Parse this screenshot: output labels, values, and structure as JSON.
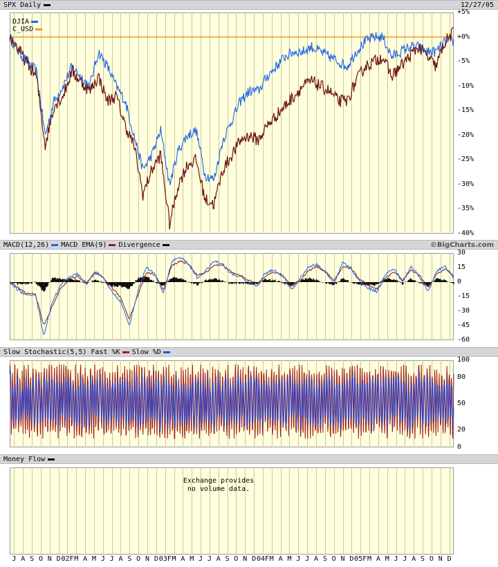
{
  "header": {
    "symbol_label": "SPX Daily",
    "date_label": "12/27/05"
  },
  "macd_header": {
    "macd_label": "MACD(12,26)",
    "ema_label": "MACD EMA(9)",
    "div_label": "Divergence",
    "credit": "©BigCharts.com"
  },
  "stoch_header": {
    "label": "Slow Stochastic(5,5)",
    "fast_label": "Fast %K",
    "slow_label": "Slow %D"
  },
  "money_header": {
    "label": "Money Flow"
  },
  "money_flow": {
    "message_line1": "Exchange provides",
    "message_line2": "no volume data."
  },
  "colors": {
    "spx": "#6b0f0f",
    "djia": "#1e64e6",
    "cusd": "#e89a2a",
    "macd": "#1e64e6",
    "ema": "#8b1a1a",
    "divergence": "#000000",
    "fastk": "#a01a1a",
    "slowd": "#2850e0",
    "grid": "#c8c8a0"
  },
  "chart_data": [
    {
      "type": "line",
      "title": "SPX Daily",
      "ylabel": "",
      "y_unit": "%",
      "ylim": [
        -40,
        5
      ],
      "y_ticks": [
        "+5%",
        "+0%",
        "-5%",
        "-10%",
        "-15%",
        "-20%",
        "-25%",
        "-30%",
        "-35%",
        "-40%"
      ],
      "y_tick_values": [
        5,
        0,
        -5,
        -10,
        -15,
        -20,
        -25,
        -30,
        -35,
        -40
      ],
      "x_ticks": [
        "J",
        "A",
        "S",
        "O",
        "N",
        "D",
        "02F",
        "M",
        "A",
        "M",
        "J",
        "J",
        "A",
        "S",
        "O",
        "N",
        "D",
        "03F",
        "M",
        "A",
        "M",
        "J",
        "J",
        "A",
        "S",
        "O",
        "N",
        "D",
        "04F",
        "M",
        "A",
        "M",
        "J",
        "J",
        "A",
        "S",
        "O",
        "N",
        "D",
        "05F",
        "M",
        "A",
        "M",
        "J",
        "J",
        "A",
        "S",
        "O",
        "N",
        "D"
      ],
      "grid": true,
      "legend": "top-left",
      "series": [
        {
          "name": "SPX",
          "x": [
            0,
            2,
            4,
            6,
            8,
            10,
            12,
            14,
            16,
            18,
            20,
            22,
            24,
            26,
            28,
            30,
            32,
            34,
            36,
            38,
            40,
            42,
            44,
            46,
            48,
            50,
            52,
            54,
            56,
            58,
            60,
            62,
            64,
            66,
            68,
            70,
            72,
            74,
            76,
            78,
            80,
            82,
            84,
            86,
            88,
            90,
            92,
            94,
            96,
            98,
            100
          ],
          "values": [
            0,
            -2.5,
            -5.5,
            -8,
            -22,
            -14,
            -12,
            -7,
            -9,
            -11,
            -8,
            -13,
            -12,
            -18,
            -22,
            -32,
            -27,
            -24,
            -38,
            -30,
            -26,
            -25,
            -33,
            -34,
            -27,
            -24,
            -21,
            -20,
            -21,
            -18,
            -16,
            -14,
            -12,
            -10,
            -9,
            -10,
            -11,
            -13,
            -13,
            -9,
            -6,
            -5,
            -4,
            -8,
            -6,
            -4,
            -2,
            -4,
            -6,
            -1,
            1
          ]
        },
        {
          "name": "DJIA",
          "x": [
            0,
            2,
            4,
            6,
            8,
            10,
            12,
            14,
            16,
            18,
            20,
            22,
            24,
            26,
            28,
            30,
            32,
            34,
            36,
            38,
            40,
            42,
            44,
            46,
            48,
            50,
            52,
            54,
            56,
            58,
            60,
            62,
            64,
            66,
            68,
            70,
            72,
            74,
            76,
            78,
            80,
            82,
            84,
            86,
            88,
            90,
            92,
            94,
            96,
            98,
            100
          ],
          "values": [
            0,
            -3,
            -5,
            -7,
            -20,
            -13,
            -10,
            -6,
            -8,
            -10,
            -3,
            -6,
            -10,
            -13,
            -20,
            -27,
            -24,
            -19,
            -30,
            -23,
            -20,
            -19,
            -28,
            -29,
            -21,
            -17,
            -13,
            -11,
            -11,
            -8,
            -6,
            -4,
            -3,
            -3,
            -2,
            -3,
            -4,
            -5,
            -6,
            -3,
            -1,
            0,
            0,
            -4,
            -3,
            -2,
            -2,
            -3,
            -3,
            -1,
            -1
          ]
        },
        {
          "name": "C_USD",
          "x": [
            0,
            100
          ],
          "values": [
            0,
            0
          ]
        }
      ]
    },
    {
      "type": "line",
      "title": "MACD(12,26)",
      "ylim": [
        -60,
        30
      ],
      "y_ticks": [
        "30",
        "15",
        "0",
        "-15",
        "-30",
        "-45",
        "-60"
      ],
      "y_tick_values": [
        30,
        15,
        0,
        -15,
        -30,
        -45,
        -60
      ],
      "series": [
        {
          "name": "MACD",
          "values": [
            0,
            -8,
            -14,
            -12,
            -55,
            -20,
            -3,
            6,
            8,
            -3,
            12,
            3,
            -10,
            -20,
            -45,
            -10,
            16,
            8,
            -12,
            22,
            26,
            18,
            4,
            12,
            22,
            18,
            8,
            6,
            0,
            -4,
            10,
            12,
            6,
            -8,
            4,
            16,
            18,
            10,
            -2,
            20,
            14,
            0,
            -6,
            -10,
            8,
            14,
            0,
            16,
            6,
            -10,
            12,
            16,
            4
          ]
        },
        {
          "name": "MACD EMA",
          "values": [
            0,
            -6,
            -12,
            -12,
            -45,
            -25,
            -6,
            3,
            6,
            -1,
            9,
            4,
            -6,
            -16,
            -38,
            -14,
            10,
            8,
            -8,
            17,
            22,
            18,
            7,
            10,
            18,
            17,
            10,
            7,
            2,
            -2,
            7,
            10,
            7,
            -4,
            2,
            12,
            16,
            11,
            1,
            16,
            14,
            3,
            -3,
            -7,
            4,
            11,
            2,
            12,
            7,
            -6,
            8,
            14,
            6
          ]
        },
        {
          "name": "Divergence",
          "values": [
            0,
            -2,
            -2,
            0,
            -10,
            5,
            3,
            3,
            2,
            -2,
            3,
            -1,
            -4,
            -4,
            -7,
            4,
            6,
            0,
            -4,
            5,
            4,
            0,
            -3,
            2,
            4,
            1,
            -2,
            -1,
            -2,
            -2,
            3,
            2,
            -1,
            -4,
            2,
            4,
            2,
            -1,
            -3,
            4,
            0,
            -3,
            -3,
            -3,
            4,
            3,
            -2,
            4,
            -1,
            -4,
            4,
            2,
            -2
          ]
        }
      ]
    },
    {
      "type": "line",
      "title": "Slow Stochastic(5,5)",
      "ylim": [
        0,
        100
      ],
      "y_ticks": [
        "100",
        "80",
        "50",
        "20",
        "0"
      ],
      "y_tick_values": [
        100,
        80,
        50,
        20,
        0
      ],
      "series": [
        {
          "name": "Fast %K",
          "cycles": 170,
          "min": 10,
          "max": 95
        },
        {
          "name": "Slow %D",
          "cycles": 170,
          "min": 12,
          "max": 92
        }
      ]
    }
  ]
}
